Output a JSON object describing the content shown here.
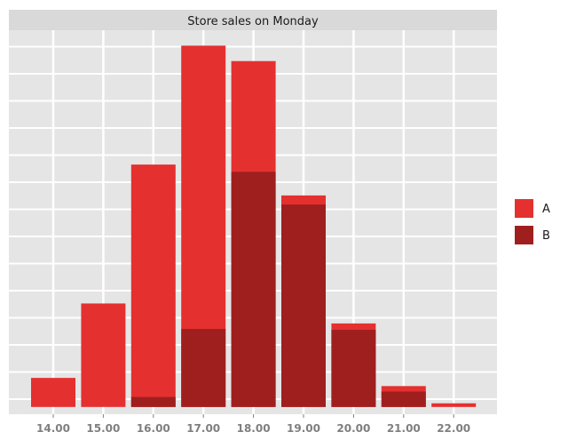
{
  "chart_data": {
    "type": "bar",
    "title": "Store sales on Monday",
    "xlabel": "",
    "ylabel": "",
    "categories": [
      "14.00",
      "15.00",
      "16.00",
      "17.00",
      "18.00",
      "19.00",
      "20.00",
      "21.00",
      "22.00"
    ],
    "series": [
      {
        "name": "A",
        "values": [
          32,
          114,
          267,
          398,
          381,
          233,
          92,
          23,
          4
        ],
        "color": "#e53030"
      },
      {
        "name": "B",
        "values": [
          0,
          0,
          11,
          86,
          259,
          223,
          85,
          17,
          0
        ],
        "color": "#9f1f1f"
      }
    ],
    "overlap": true,
    "ylim": [
      -8,
      415
    ],
    "grid": true,
    "y_tick_labels_shown": false,
    "legend_position": "right",
    "panel_background": "#e5e5e5",
    "strip_background": "#d9d9d9"
  }
}
